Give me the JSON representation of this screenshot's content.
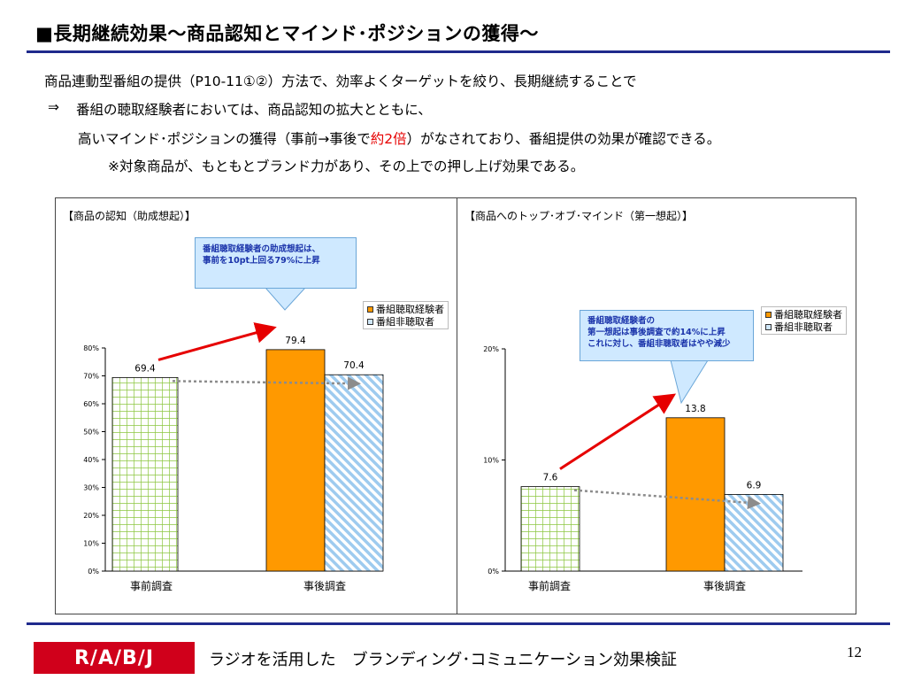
{
  "header": {
    "title": "■長期継続効果～商品認知とマインド･ポジションの獲得～"
  },
  "body": {
    "line1": "商品連動型番組の提供（P10-11①②）方法で、効率よくターゲットを絞り、長期継続することで",
    "line2_arrow": "⇒",
    "line2": "番組の聴取経験者においては、商品認知の拡大とともに、",
    "line3_pre": "高いマインド･ポジションの獲得（事前→事後で",
    "line3_red": "約2倍",
    "line3_post": "）がなされており、番組提供の効果が確認できる。",
    "line4": "※対象商品が、もともとブランド力があり、その上での押し上げ効果である。"
  },
  "colors": {
    "accent_blue": "#1f2a8c",
    "listened": "#ff9900",
    "not_listened": "#9ecbef",
    "pre_survey": "#8cc63f",
    "arrow_red": "#e60000",
    "arrow_gray": "#8c8c8c",
    "logo_red": "#d0001b",
    "emphasis_red": "#e60000"
  },
  "chart_data": [
    {
      "type": "bar",
      "title": "【商品の認知（助成想起）】",
      "categories": [
        "事前調査",
        "事後調査"
      ],
      "series": [
        {
          "name": "",
          "values": [
            69.4,
            null
          ]
        },
        {
          "name": "番組聴取経験者",
          "values": [
            null,
            79.4
          ]
        },
        {
          "name": "番組非聴取者",
          "values": [
            null,
            70.4
          ]
        }
      ],
      "value_labels": [
        "69.4",
        "79.4",
        "70.4"
      ],
      "ylim": [
        0,
        80
      ],
      "yticks": [
        "0%",
        "10%",
        "20%",
        "30%",
        "40%",
        "50%",
        "60%",
        "70%",
        "80%"
      ],
      "legend": [
        "番組聴取経験者",
        "番組非聴取者"
      ],
      "legend_position": "top-right",
      "annotation": [
        "番組聴取経験者の助成想起は、",
        "事前を10pt上回る79%に上昇"
      ]
    },
    {
      "type": "bar",
      "title": "【商品へのトップ･オブ･マインド（第一想起）】",
      "categories": [
        "事前調査",
        "事後調査"
      ],
      "series": [
        {
          "name": "",
          "values": [
            7.6,
            null
          ]
        },
        {
          "name": "番組聴取経験者",
          "values": [
            null,
            13.8
          ]
        },
        {
          "name": "番組非聴取者",
          "values": [
            null,
            6.9
          ]
        }
      ],
      "value_labels": [
        "7.6",
        "13.8",
        "6.9"
      ],
      "ylim": [
        0,
        20
      ],
      "yticks": [
        "0%",
        "10%",
        "20%"
      ],
      "legend": [
        "番組聴取経験者",
        "番組非聴取者"
      ],
      "legend_position": "top-right",
      "annotation": [
        "番組聴取経験者の",
        "第一想起は事後調査で約14%に上昇",
        "これに対し、番組非聴取者はやや減少"
      ]
    }
  ],
  "footer": {
    "logo": "R/A/B/J",
    "text": "ラジオを活用した　ブランディング･コミュニケーション効果検証",
    "page_number": "12"
  }
}
